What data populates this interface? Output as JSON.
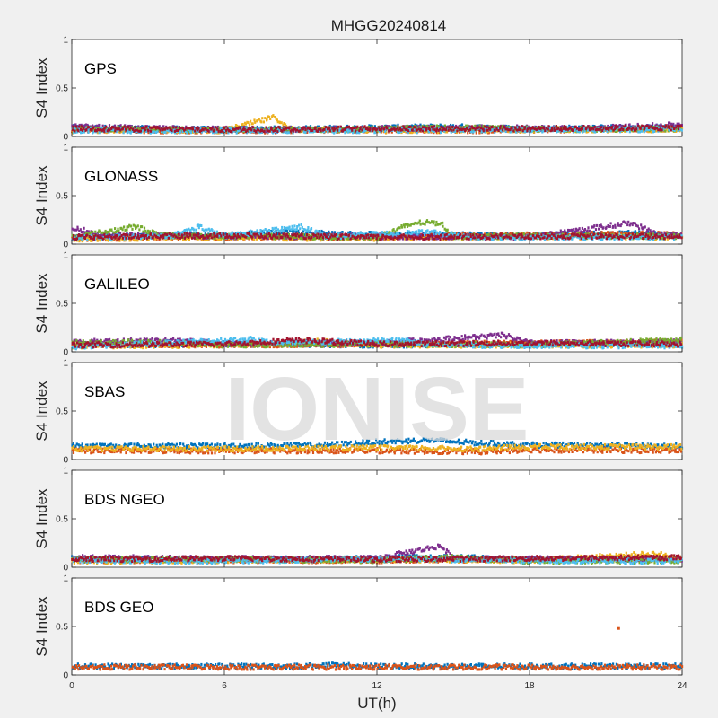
{
  "title": "MHGG20240814",
  "watermark": "IONISE",
  "xlabel": "UT(h)",
  "ylabel": "S4 Index",
  "chart_data": {
    "type": "scatter",
    "title": "MHGG20240814",
    "xlabel": "UT(h)",
    "xlim": [
      0,
      24
    ],
    "xticks": [
      "0",
      "6",
      "12",
      "18",
      "24"
    ],
    "ylim": [
      0,
      1
    ],
    "yticks": [
      "0",
      "0.5",
      "1"
    ],
    "grid": false,
    "panels": [
      {
        "label": "GPS",
        "series": [
          {
            "color": "#0072bd",
            "base": [
              [
                0,
                0.09
              ],
              [
                3,
                0.08
              ],
              [
                6,
                0.07
              ],
              [
                9,
                0.08
              ],
              [
                12,
                0.09
              ],
              [
                15,
                0.1
              ],
              [
                18,
                0.08
              ],
              [
                21,
                0.09
              ],
              [
                24,
                0.1
              ]
            ]
          },
          {
            "color": "#d95319",
            "base": [
              [
                0,
                0.07
              ],
              [
                4,
                0.06
              ],
              [
                8,
                0.06
              ],
              [
                12,
                0.07
              ],
              [
                16,
                0.06
              ],
              [
                20,
                0.07
              ],
              [
                24,
                0.08
              ]
            ]
          },
          {
            "color": "#edb120",
            "base": [
              [
                0,
                0.06
              ],
              [
                3,
                0.07
              ],
              [
                6,
                0.06
              ],
              [
                8,
                0.2
              ],
              [
                8.5,
                0.08
              ],
              [
                12,
                0.06
              ],
              [
                18,
                0.07
              ],
              [
                24,
                0.07
              ]
            ]
          },
          {
            "color": "#7e2f8e",
            "base": [
              [
                0,
                0.1
              ],
              [
                4,
                0.08
              ],
              [
                8,
                0.07
              ],
              [
                12,
                0.08
              ],
              [
                16,
                0.09
              ],
              [
                20,
                0.08
              ],
              [
                24,
                0.12
              ]
            ]
          },
          {
            "color": "#77ac30",
            "base": [
              [
                0,
                0.08
              ],
              [
                5,
                0.07
              ],
              [
                10,
                0.07
              ],
              [
                15,
                0.09
              ],
              [
                20,
                0.07
              ],
              [
                24,
                0.08
              ]
            ]
          },
          {
            "color": "#4dbeee",
            "base": [
              [
                0,
                0.06
              ],
              [
                6,
                0.06
              ],
              [
                12,
                0.06
              ],
              [
                18,
                0.07
              ],
              [
                24,
                0.07
              ]
            ]
          },
          {
            "color": "#a2142f",
            "base": [
              [
                0,
                0.08
              ],
              [
                6,
                0.07
              ],
              [
                12,
                0.08
              ],
              [
                18,
                0.08
              ],
              [
                24,
                0.09
              ]
            ]
          }
        ]
      },
      {
        "label": "GLONASS",
        "series": [
          {
            "color": "#0072bd",
            "base": [
              [
                0,
                0.08
              ],
              [
                6,
                0.09
              ],
              [
                8,
                0.12
              ],
              [
                10,
                0.11
              ],
              [
                12,
                0.1
              ],
              [
                18,
                0.09
              ],
              [
                22,
                0.11
              ],
              [
                24,
                0.09
              ]
            ]
          },
          {
            "color": "#d95319",
            "base": [
              [
                0,
                0.06
              ],
              [
                6,
                0.07
              ],
              [
                12,
                0.07
              ],
              [
                16,
                0.09
              ],
              [
                20,
                0.1
              ],
              [
                24,
                0.1
              ]
            ]
          },
          {
            "color": "#edb120",
            "base": [
              [
                0,
                0.05
              ],
              [
                4,
                0.07
              ],
              [
                8,
                0.06
              ],
              [
                12,
                0.06
              ],
              [
                18,
                0.08
              ],
              [
                24,
                0.07
              ]
            ]
          },
          {
            "color": "#7e2f8e",
            "base": [
              [
                0,
                0.18
              ],
              [
                1,
                0.1
              ],
              [
                6,
                0.08
              ],
              [
                12,
                0.08
              ],
              [
                18,
                0.07
              ],
              [
                22,
                0.22
              ],
              [
                23,
                0.1
              ],
              [
                24,
                0.09
              ]
            ]
          },
          {
            "color": "#77ac30",
            "base": [
              [
                0,
                0.07
              ],
              [
                2.5,
                0.18
              ],
              [
                3.5,
                0.09
              ],
              [
                12,
                0.07
              ],
              [
                13.5,
                0.22
              ],
              [
                14.5,
                0.22
              ],
              [
                15,
                0.08
              ],
              [
                24,
                0.08
              ]
            ]
          },
          {
            "color": "#4dbeee",
            "base": [
              [
                0,
                0.06
              ],
              [
                4,
                0.09
              ],
              [
                5,
                0.18
              ],
              [
                6,
                0.08
              ],
              [
                9,
                0.18
              ],
              [
                10,
                0.08
              ],
              [
                14,
                0.12
              ],
              [
                16,
                0.07
              ],
              [
                24,
                0.07
              ]
            ]
          },
          {
            "color": "#a2142f",
            "base": [
              [
                0,
                0.07
              ],
              [
                6,
                0.09
              ],
              [
                12,
                0.07
              ],
              [
                18,
                0.08
              ],
              [
                24,
                0.08
              ]
            ]
          }
        ]
      },
      {
        "label": "GALILEO",
        "series": [
          {
            "color": "#0072bd",
            "base": [
              [
                0,
                0.07
              ],
              [
                6,
                0.08
              ],
              [
                12,
                0.07
              ],
              [
                18,
                0.08
              ],
              [
                24,
                0.08
              ]
            ]
          },
          {
            "color": "#d95319",
            "base": [
              [
                0,
                0.08
              ],
              [
                6,
                0.07
              ],
              [
                12,
                0.08
              ],
              [
                18,
                0.09
              ],
              [
                24,
                0.1
              ]
            ]
          },
          {
            "color": "#edb120",
            "base": [
              [
                0,
                0.06
              ],
              [
                6,
                0.07
              ],
              [
                10,
                0.11
              ],
              [
                12,
                0.07
              ],
              [
                24,
                0.07
              ]
            ]
          },
          {
            "color": "#7e2f8e",
            "base": [
              [
                0,
                0.1
              ],
              [
                4,
                0.12
              ],
              [
                6,
                0.08
              ],
              [
                12,
                0.09
              ],
              [
                17,
                0.17
              ],
              [
                18,
                0.09
              ],
              [
                24,
                0.1
              ]
            ]
          },
          {
            "color": "#77ac30",
            "base": [
              [
                0,
                0.09
              ],
              [
                3,
                0.1
              ],
              [
                6,
                0.07
              ],
              [
                12,
                0.08
              ],
              [
                18,
                0.07
              ],
              [
                24,
                0.12
              ]
            ]
          },
          {
            "color": "#4dbeee",
            "base": [
              [
                0,
                0.05
              ],
              [
                7,
                0.13
              ],
              [
                8,
                0.09
              ],
              [
                13,
                0.12
              ],
              [
                14,
                0.07
              ],
              [
                24,
                0.06
              ]
            ]
          },
          {
            "color": "#a2142f",
            "base": [
              [
                0,
                0.07
              ],
              [
                6,
                0.08
              ],
              [
                9,
                0.12
              ],
              [
                12,
                0.08
              ],
              [
                18,
                0.09
              ],
              [
                24,
                0.08
              ]
            ]
          }
        ]
      },
      {
        "label": "SBAS",
        "series": [
          {
            "color": "#0072bd",
            "base": [
              [
                0,
                0.14
              ],
              [
                6,
                0.14
              ],
              [
                10,
                0.15
              ],
              [
                12,
                0.18
              ],
              [
                14,
                0.2
              ],
              [
                16,
                0.17
              ],
              [
                18,
                0.15
              ],
              [
                24,
                0.14
              ]
            ]
          },
          {
            "color": "#d95319",
            "base": [
              [
                0,
                0.09
              ],
              [
                6,
                0.09
              ],
              [
                12,
                0.09
              ],
              [
                16,
                0.08
              ],
              [
                18,
                0.1
              ],
              [
                24,
                0.09
              ]
            ]
          },
          {
            "color": "#edb120",
            "base": [
              [
                0,
                0.11
              ],
              [
                6,
                0.11
              ],
              [
                12,
                0.12
              ],
              [
                16,
                0.11
              ],
              [
                18,
                0.13
              ],
              [
                24,
                0.13
              ]
            ]
          }
        ]
      },
      {
        "label": "BDS NGEO",
        "series": [
          {
            "color": "#0072bd",
            "base": [
              [
                0,
                0.09
              ],
              [
                6,
                0.08
              ],
              [
                12,
                0.09
              ],
              [
                14,
                0.11
              ],
              [
                18,
                0.08
              ],
              [
                24,
                0.09
              ]
            ]
          },
          {
            "color": "#d95319",
            "base": [
              [
                0,
                0.07
              ],
              [
                6,
                0.07
              ],
              [
                12,
                0.07
              ],
              [
                18,
                0.08
              ],
              [
                24,
                0.09
              ]
            ]
          },
          {
            "color": "#edb120",
            "base": [
              [
                0,
                0.06
              ],
              [
                6,
                0.07
              ],
              [
                12,
                0.08
              ],
              [
                18,
                0.07
              ],
              [
                23,
                0.14
              ],
              [
                24,
                0.08
              ]
            ]
          },
          {
            "color": "#7e2f8e",
            "base": [
              [
                0,
                0.1
              ],
              [
                6,
                0.09
              ],
              [
                12,
                0.09
              ],
              [
                14.5,
                0.22
              ],
              [
                15,
                0.09
              ],
              [
                24,
                0.08
              ]
            ]
          },
          {
            "color": "#77ac30",
            "base": [
              [
                0,
                0.08
              ],
              [
                6,
                0.08
              ],
              [
                12,
                0.07
              ],
              [
                15,
                0.1
              ],
              [
                18,
                0.06
              ],
              [
                24,
                0.07
              ]
            ]
          },
          {
            "color": "#4dbeee",
            "base": [
              [
                0,
                0.07
              ],
              [
                4,
                0.06
              ],
              [
                8,
                0.07
              ],
              [
                12,
                0.08
              ],
              [
                18,
                0.07
              ],
              [
                24,
                0.06
              ]
            ]
          },
          {
            "color": "#a2142f",
            "base": [
              [
                0,
                0.08
              ],
              [
                6,
                0.09
              ],
              [
                12,
                0.08
              ],
              [
                18,
                0.09
              ],
              [
                24,
                0.1
              ]
            ]
          }
        ]
      },
      {
        "label": "BDS GEO",
        "series": [
          {
            "color": "#0072bd",
            "base": [
              [
                0,
                0.09
              ],
              [
                9,
                0.09
              ],
              [
                10,
                0.1
              ],
              [
                12,
                0.09
              ],
              [
                24,
                0.09
              ]
            ]
          },
          {
            "color": "#d95319",
            "base": [
              [
                0,
                0.08
              ],
              [
                12,
                0.08
              ],
              [
                24,
                0.08
              ]
            ],
            "outliers": [
              [
                21.5,
                0.48
              ]
            ]
          }
        ]
      }
    ]
  }
}
